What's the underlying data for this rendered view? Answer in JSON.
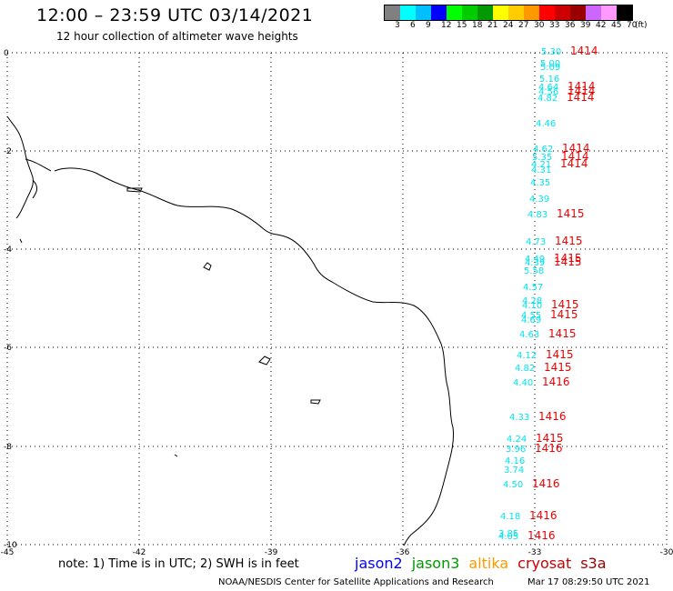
{
  "header": {
    "title": "12:00 – 23:59 UTC 03/14/2021",
    "subtitle": "12 hour collection of altimeter wave heights"
  },
  "color_scale": {
    "labels": [
      "3",
      "6",
      "9",
      "12",
      "15",
      "18",
      "21",
      "24",
      "27",
      "30",
      "33",
      "36",
      "39",
      "42",
      "45",
      "70"
    ],
    "unit": "(ft)",
    "colors": [
      "#808080",
      "#00ffff",
      "#00bfff",
      "#0000ff",
      "#00ff00",
      "#00cc00",
      "#009900",
      "#ffff00",
      "#ffcc00",
      "#ff9900",
      "#ff0000",
      "#cc0000",
      "#990000",
      "#cc66ff",
      "#ff99ff",
      "#000000"
    ]
  },
  "axes": {
    "x_ticks": [
      "-45",
      "-42",
      "-39",
      "-36",
      "-33",
      "-30"
    ],
    "y_ticks": [
      "0",
      "-2",
      "-4",
      "-6",
      "-8",
      "-10"
    ]
  },
  "observations": [
    {
      "h": "5.30",
      "t": "1414"
    },
    {
      "h": "5.00",
      "t": ""
    },
    {
      "h": "5.09",
      "t": ""
    },
    {
      "h": "5.16",
      "t": ""
    },
    {
      "h": "4.64",
      "t": "1414"
    },
    {
      "h": "4.56",
      "t": "1414"
    },
    {
      "h": "4.82",
      "t": "1414"
    },
    {
      "h": "4.46",
      "t": ""
    },
    {
      "h": "4.62",
      "t": "1414"
    },
    {
      "h": "5.35",
      "t": "1414"
    },
    {
      "h": "4.21",
      "t": "1414"
    },
    {
      "h": "4.31",
      "t": ""
    },
    {
      "h": "4.35",
      "t": ""
    },
    {
      "h": "4.39",
      "t": ""
    },
    {
      "h": "4.83",
      "t": "1415"
    },
    {
      "h": "4.73",
      "t": "1415"
    },
    {
      "h": "4.49",
      "t": "1415"
    },
    {
      "h": "4.39",
      "t": "1415"
    },
    {
      "h": "5.58",
      "t": ""
    },
    {
      "h": "4.57",
      "t": ""
    },
    {
      "h": "4.28",
      "t": ""
    },
    {
      "h": "4.10",
      "t": "1415"
    },
    {
      "h": "4.55",
      "t": "1415"
    },
    {
      "h": "4.69",
      "t": ""
    },
    {
      "h": "4.63",
      "t": "1415"
    },
    {
      "h": "4.12",
      "t": "1415"
    },
    {
      "h": "4.82",
      "t": "1415"
    },
    {
      "h": "4.40",
      "t": "1416"
    },
    {
      "h": "4.33",
      "t": "1416"
    },
    {
      "h": "4.24",
      "t": "1415"
    },
    {
      "h": "3.96",
      "t": "1416"
    },
    {
      "h": "4.16",
      "t": ""
    },
    {
      "h": "3.74",
      "t": ""
    },
    {
      "h": "4.50",
      "t": "1416"
    },
    {
      "h": "4.18",
      "t": "1416"
    },
    {
      "h": "3.85",
      "t": ""
    },
    {
      "h": "4.05",
      "t": "1416"
    }
  ],
  "footer": {
    "note": "note: 1) Time is in UTC; 2) SWH is in feet",
    "missions": [
      {
        "name": "jason2",
        "color": "#0000ff"
      },
      {
        "name": "jason3",
        "color": "#009900"
      },
      {
        "name": "altika",
        "color": "#ff9900"
      },
      {
        "name": "cryosat",
        "color": "#cc0000"
      },
      {
        "name": "s3a",
        "color": "#990000"
      }
    ],
    "credit": "NOAA/NESDIS Center for Satellite Applications and Research",
    "timestamp": "Mar 17 08:29:50 UTC 2021"
  },
  "colors": {
    "swh_text": "#00e5ee",
    "time_text": "#ee0000",
    "coast": "#000000",
    "grid": "#000000"
  }
}
